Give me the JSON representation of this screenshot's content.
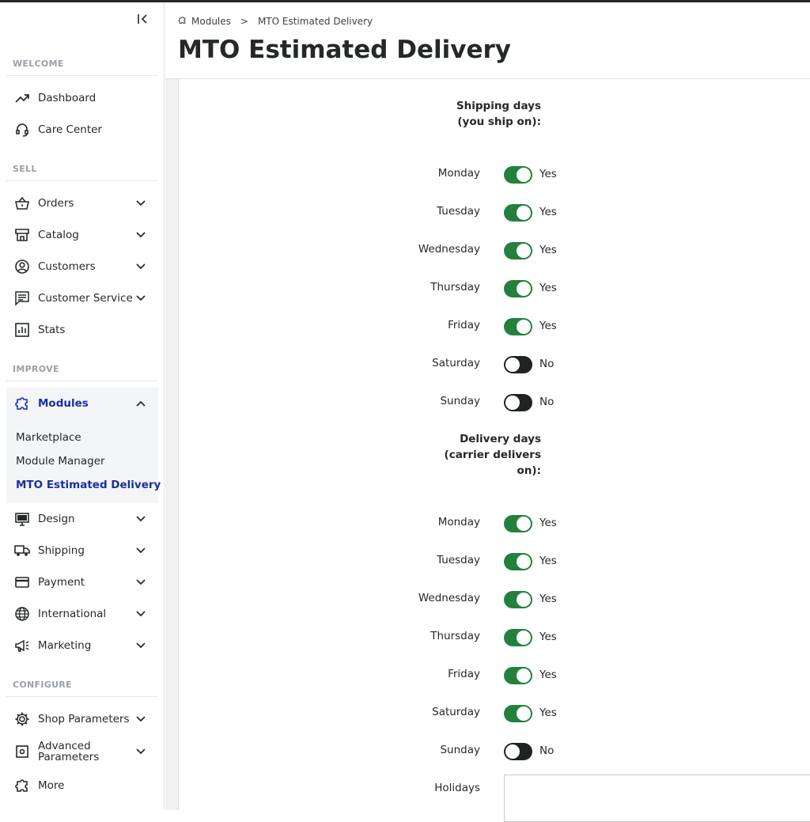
{
  "breadcrumb": {
    "parent": "Modules",
    "separator": ">",
    "current": "MTO Estimated Delivery"
  },
  "page_title": "MTO Estimated Delivery",
  "sidebar": {
    "sections": {
      "welcome": "WELCOME",
      "sell": "SELL",
      "improve": "IMPROVE",
      "configure": "CONFIGURE"
    },
    "items": {
      "dashboard": "Dashboard",
      "care_center": "Care Center",
      "orders": "Orders",
      "catalog": "Catalog",
      "customers": "Customers",
      "customer_service": "Customer Service",
      "stats": "Stats",
      "modules": "Modules",
      "design": "Design",
      "shipping": "Shipping",
      "payment": "Payment",
      "international": "International",
      "marketing": "Marketing",
      "shop_parameters": "Shop Parameters",
      "advanced_parameters": "Advanced Parameters",
      "more": "More"
    },
    "modules_sub": {
      "marketplace": "Marketplace",
      "module_manager": "Module Manager",
      "mto_estimated_delivery": "MTO Estimated Delivery"
    }
  },
  "shipping": {
    "title_line1": "Shipping days",
    "title_line2": "(you ship on):",
    "days": [
      {
        "day": "Monday",
        "value": "Yes"
      },
      {
        "day": "Tuesday",
        "value": "Yes"
      },
      {
        "day": "Wednesday",
        "value": "Yes"
      },
      {
        "day": "Thursday",
        "value": "Yes"
      },
      {
        "day": "Friday",
        "value": "Yes"
      },
      {
        "day": "Saturday",
        "value": "No"
      },
      {
        "day": "Sunday",
        "value": "No"
      }
    ]
  },
  "delivery": {
    "title_line1": "Delivery days",
    "title_line2": "(carrier delivers",
    "title_line3": "on):",
    "days": [
      {
        "day": "Monday",
        "value": "Yes"
      },
      {
        "day": "Tuesday",
        "value": "Yes"
      },
      {
        "day": "Wednesday",
        "value": "Yes"
      },
      {
        "day": "Thursday",
        "value": "Yes"
      },
      {
        "day": "Friday",
        "value": "Yes"
      },
      {
        "day": "Saturday",
        "value": "Yes"
      },
      {
        "day": "Sunday",
        "value": "No"
      }
    ]
  },
  "holidays_label": "Holidays",
  "colors": {
    "accent": "#1a2fa0",
    "toggle_on": "#23803d",
    "toggle_off": "#1f2326"
  }
}
